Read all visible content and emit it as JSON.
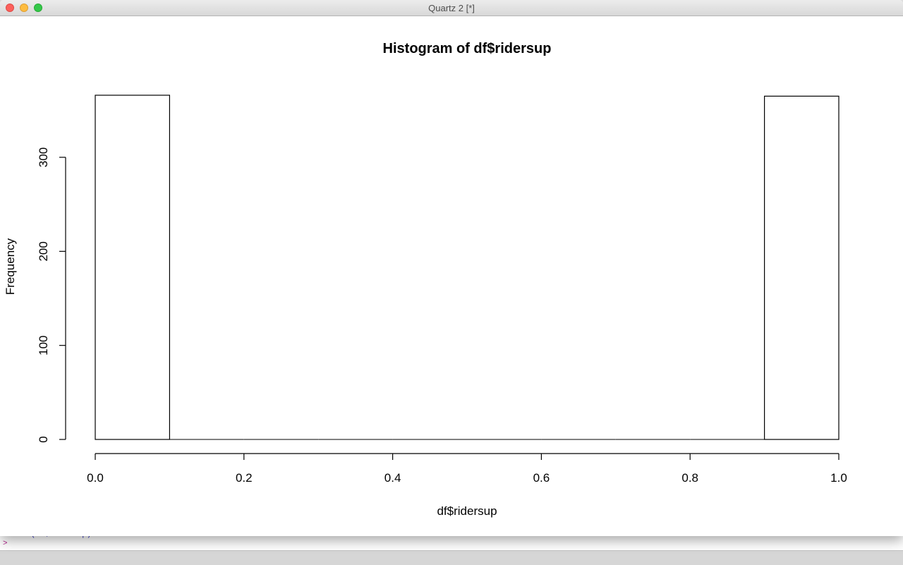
{
  "window": {
    "title": "Quartz 2 [*]"
  },
  "console": {
    "line1": "> hist(df$ridersup)",
    "line2": ">"
  },
  "chart_data": {
    "type": "bar",
    "title": "Histogram of df$ridersup",
    "xlabel": "df$ridersup",
    "ylabel": "Frequency",
    "bins": [
      {
        "start": 0.0,
        "end": 0.1,
        "count": 366
      },
      {
        "start": 0.1,
        "end": 0.2,
        "count": 0
      },
      {
        "start": 0.2,
        "end": 0.3,
        "count": 0
      },
      {
        "start": 0.3,
        "end": 0.4,
        "count": 0
      },
      {
        "start": 0.4,
        "end": 0.5,
        "count": 0
      },
      {
        "start": 0.5,
        "end": 0.6,
        "count": 0
      },
      {
        "start": 0.6,
        "end": 0.7,
        "count": 0
      },
      {
        "start": 0.7,
        "end": 0.8,
        "count": 0
      },
      {
        "start": 0.8,
        "end": 0.9,
        "count": 0
      },
      {
        "start": 0.9,
        "end": 1.0,
        "count": 365
      }
    ],
    "xlim": [
      0,
      1
    ],
    "ylim": [
      0,
      366
    ],
    "xticks": [
      "0.0",
      "0.2",
      "0.4",
      "0.6",
      "0.8",
      "1.0"
    ],
    "yticks": [
      "0",
      "100",
      "200",
      "300"
    ],
    "grid": false
  }
}
